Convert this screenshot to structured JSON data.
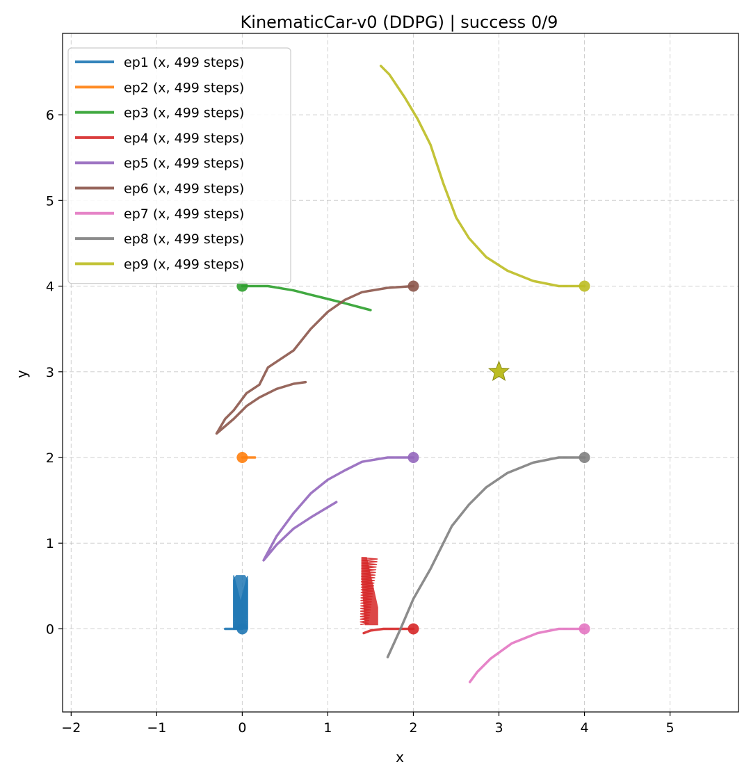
{
  "chart_data": {
    "type": "line",
    "title": "KinematicCar-v0 (DDPG) | success 0/9",
    "xlabel": "x",
    "ylabel": "y",
    "xlim": [
      -2.1,
      5.8
    ],
    "ylim": [
      -0.97,
      6.95
    ],
    "xticks": [
      -2,
      -1,
      0,
      1,
      2,
      3,
      4,
      5
    ],
    "yticks": [
      0,
      1,
      2,
      3,
      4,
      5,
      6
    ],
    "grid": true,
    "legend_position": "top-left",
    "goal": {
      "x": 3,
      "y": 3,
      "marker": "star",
      "color": "#bcbd22"
    },
    "series": [
      {
        "name": "ep1 (x, 499 steps)",
        "color": "#1f77b4",
        "start": [
          0,
          0
        ],
        "oscillation": {
          "x_center": -0.02,
          "half_width": 0.08,
          "y_min": 0.0,
          "y_max": 0.62,
          "cycles": 30
        },
        "points": [
          [
            0,
            0
          ],
          [
            -0.2,
            0
          ],
          [
            -0.1,
            0
          ]
        ]
      },
      {
        "name": "ep2 (x, 499 steps)",
        "color": "#ff7f0e",
        "start": [
          0,
          2
        ],
        "points": [
          [
            0,
            2
          ],
          [
            0.08,
            2.0
          ],
          [
            0.15,
            2.0
          ],
          [
            0.12,
            2.0
          ]
        ]
      },
      {
        "name": "ep3 (x, 499 steps)",
        "color": "#2ca02c",
        "start": [
          0,
          4
        ],
        "points": [
          [
            0,
            4
          ],
          [
            0.3,
            4.0
          ],
          [
            0.6,
            3.95
          ],
          [
            0.8,
            3.9
          ],
          [
            1.0,
            3.85
          ],
          [
            1.2,
            3.8
          ],
          [
            1.5,
            3.72
          ]
        ]
      },
      {
        "name": "ep4 (x, 499 steps)",
        "color": "#d62728",
        "start": [
          2,
          0
        ],
        "oscillation": {
          "x_left": 1.4,
          "x_right": 1.58,
          "y_min": 0.05,
          "y_max": 0.83,
          "cycles": 25
        },
        "points": [
          [
            2,
            0
          ],
          [
            1.8,
            0.0
          ],
          [
            1.65,
            0.0
          ],
          [
            1.5,
            -0.02
          ],
          [
            1.42,
            -0.05
          ]
        ]
      },
      {
        "name": "ep5 (x, 499 steps)",
        "color": "#9467bd",
        "start": [
          2,
          2
        ],
        "points": [
          [
            2,
            2
          ],
          [
            1.7,
            2.0
          ],
          [
            1.4,
            1.95
          ],
          [
            1.2,
            1.85
          ],
          [
            1.0,
            1.74
          ],
          [
            0.8,
            1.58
          ],
          [
            0.6,
            1.35
          ],
          [
            0.4,
            1.08
          ],
          [
            0.25,
            0.8
          ],
          [
            0.4,
            0.98
          ],
          [
            0.6,
            1.17
          ],
          [
            0.8,
            1.3
          ],
          [
            1.0,
            1.42
          ],
          [
            1.1,
            1.48
          ]
        ]
      },
      {
        "name": "ep6 (x, 499 steps)",
        "color": "#8c564b",
        "start": [
          2,
          4
        ],
        "points": [
          [
            2,
            4
          ],
          [
            1.7,
            3.98
          ],
          [
            1.4,
            3.93
          ],
          [
            1.2,
            3.84
          ],
          [
            1.0,
            3.7
          ],
          [
            0.8,
            3.5
          ],
          [
            0.6,
            3.25
          ],
          [
            0.3,
            3.05
          ],
          [
            0.2,
            2.85
          ],
          [
            0.05,
            2.75
          ],
          [
            -0.1,
            2.55
          ],
          [
            -0.2,
            2.45
          ],
          [
            -0.3,
            2.28
          ],
          [
            -0.1,
            2.45
          ],
          [
            0.05,
            2.6
          ],
          [
            0.2,
            2.7
          ],
          [
            0.4,
            2.8
          ],
          [
            0.6,
            2.86
          ],
          [
            0.74,
            2.88
          ]
        ]
      },
      {
        "name": "ep7 (x, 499 steps)",
        "color": "#e377c2",
        "start": [
          4,
          0
        ],
        "points": [
          [
            4,
            0
          ],
          [
            3.7,
            0.0
          ],
          [
            3.45,
            -0.05
          ],
          [
            3.15,
            -0.17
          ],
          [
            2.9,
            -0.35
          ],
          [
            2.75,
            -0.5
          ],
          [
            2.66,
            -0.62
          ]
        ]
      },
      {
        "name": "ep8 (x, 499 steps)",
        "color": "#7f7f7f",
        "start": [
          4,
          2
        ],
        "points": [
          [
            4,
            2
          ],
          [
            3.7,
            2.0
          ],
          [
            3.4,
            1.94
          ],
          [
            3.1,
            1.82
          ],
          [
            2.85,
            1.65
          ],
          [
            2.65,
            1.45
          ],
          [
            2.45,
            1.2
          ],
          [
            2.2,
            0.7
          ],
          [
            2.0,
            0.35
          ],
          [
            1.85,
            0.0
          ],
          [
            1.7,
            -0.33
          ]
        ]
      },
      {
        "name": "ep9 (x, 499 steps)",
        "color": "#bcbd22",
        "start": [
          4,
          4
        ],
        "points": [
          [
            4,
            4
          ],
          [
            3.7,
            4.0
          ],
          [
            3.4,
            4.06
          ],
          [
            3.1,
            4.18
          ],
          [
            2.85,
            4.34
          ],
          [
            2.65,
            4.56
          ],
          [
            2.5,
            4.8
          ],
          [
            2.35,
            5.2
          ],
          [
            2.2,
            5.65
          ],
          [
            2.05,
            5.95
          ],
          [
            1.9,
            6.2
          ],
          [
            1.72,
            6.47
          ],
          [
            1.62,
            6.57
          ]
        ]
      }
    ]
  }
}
